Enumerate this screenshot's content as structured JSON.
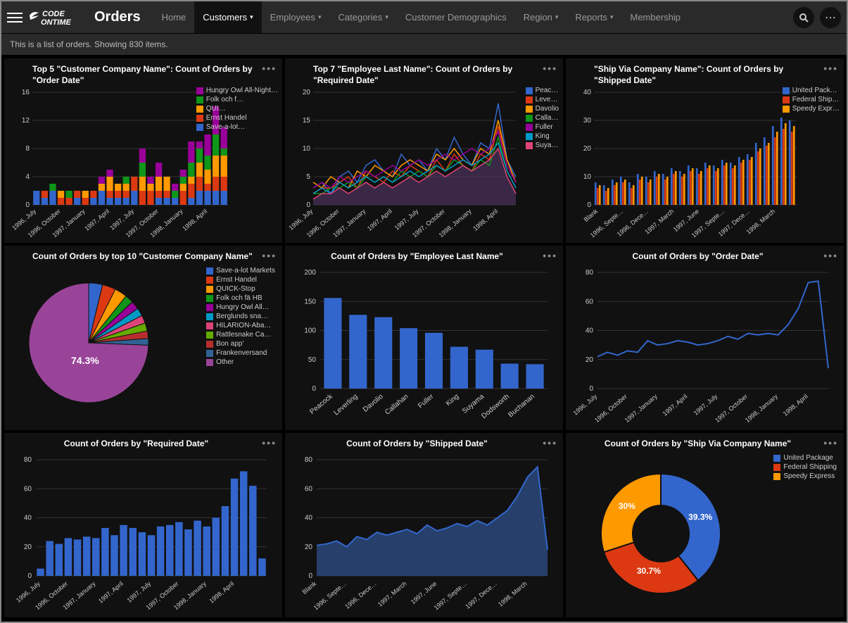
{
  "header": {
    "brand_top": "CODE",
    "brand_bottom": "ONTIME",
    "page_title": "Orders",
    "nav": [
      {
        "label": "Home",
        "active": false,
        "dropdown": false
      },
      {
        "label": "Customers",
        "active": true,
        "dropdown": true
      },
      {
        "label": "Employees",
        "active": false,
        "dropdown": true
      },
      {
        "label": "Categories",
        "active": false,
        "dropdown": true
      },
      {
        "label": "Customer Demographics",
        "active": false,
        "dropdown": false
      },
      {
        "label": "Region",
        "active": false,
        "dropdown": true
      },
      {
        "label": "Reports",
        "active": false,
        "dropdown": true
      },
      {
        "label": "Membership",
        "active": false,
        "dropdown": false
      }
    ]
  },
  "subheader": "This is a list of orders. Showing 830 items.",
  "palette": {
    "bg": "#111111",
    "text": "#cccccc",
    "axis": "#555555",
    "blue": "#3366cc",
    "red": "#dc3912",
    "orange": "#ff9900",
    "green": "#109618",
    "purple": "#990099",
    "cyan": "#0099c6",
    "pink": "#dd4477",
    "lime": "#66aa00",
    "darkred": "#b82e2e",
    "indigo": "#316395",
    "magenta": "#994499"
  },
  "charts": {
    "c1": {
      "type": "stacked-bar",
      "title": "Top 5 \"Customer Company Name\": Count of Orders by \"Order Date\"",
      "x_labels": [
        "1996, July",
        "1996, October",
        "1997, January",
        "1997, April",
        "1997, July",
        "1997, October",
        "1998, January",
        "1998, April"
      ],
      "ylim": [
        0,
        16
      ],
      "ytick_step": 4,
      "legend_labels": [
        "Hungry Owl All-Night…",
        "Folk och f…",
        "QUI…",
        "Ernst Handel",
        "Save-a-lot…"
      ],
      "legend_colors": [
        "#990099",
        "#109618",
        "#ff9900",
        "#dc3912",
        "#3366cc"
      ],
      "series": [
        {
          "color": "#3366cc",
          "values": [
            2,
            1,
            2,
            0,
            0,
            1,
            0,
            1,
            2,
            1,
            1,
            1,
            2,
            0,
            0,
            1,
            1,
            1,
            0,
            1,
            2,
            2,
            2,
            2
          ]
        },
        {
          "color": "#dc3912",
          "values": [
            0,
            1,
            0,
            1,
            1,
            1,
            1,
            1,
            0,
            1,
            1,
            1,
            2,
            2,
            2,
            1,
            1,
            0,
            2,
            2,
            2,
            1,
            2,
            2
          ]
        },
        {
          "color": "#ff9900",
          "values": [
            0,
            0,
            0,
            1,
            0,
            0,
            1,
            0,
            1,
            2,
            1,
            1,
            0,
            2,
            1,
            2,
            2,
            0,
            1,
            1,
            2,
            2,
            3,
            3
          ]
        },
        {
          "color": "#109618",
          "values": [
            0,
            0,
            1,
            0,
            1,
            0,
            0,
            0,
            0,
            0,
            0,
            1,
            0,
            2,
            0,
            0,
            0,
            1,
            1,
            2,
            2,
            2,
            3,
            1
          ]
        },
        {
          "color": "#990099",
          "values": [
            0,
            0,
            0,
            0,
            0,
            0,
            0,
            0,
            1,
            1,
            0,
            0,
            0,
            2,
            1,
            2,
            0,
            1,
            1,
            3,
            1,
            3,
            4,
            3
          ]
        }
      ]
    },
    "c2": {
      "type": "multi-line",
      "title": "Top 7 \"Employee Last Name\": Count of Orders by \"Required Date\"",
      "x_labels": [
        "1996, July",
        "1996, October",
        "1997, January",
        "1997, April",
        "1997, July",
        "1997, October",
        "1998, January",
        "1998, April"
      ],
      "ylim": [
        0,
        20
      ],
      "ytick_step": 5,
      "legend_labels": [
        "Peac…",
        "Leve…",
        "Davolio",
        "Calla…",
        "Fuller",
        "King",
        "Suya…"
      ],
      "legend_colors": [
        "#3366cc",
        "#dc3912",
        "#ff9900",
        "#109618",
        "#990099",
        "#0099c6",
        "#dd4477"
      ],
      "area_color": "#57396b",
      "series": [
        {
          "color": "#3366cc",
          "values": [
            3,
            4,
            2,
            5,
            6,
            4,
            7,
            8,
            6,
            5,
            9,
            7,
            8,
            6,
            10,
            8,
            12,
            9,
            7,
            11,
            10,
            18,
            8,
            5
          ]
        },
        {
          "color": "#dc3912",
          "values": [
            2,
            3,
            3,
            4,
            5,
            3,
            6,
            5,
            4,
            6,
            5,
            7,
            6,
            5,
            8,
            6,
            9,
            7,
            6,
            9,
            8,
            14,
            7,
            4
          ]
        },
        {
          "color": "#ff9900",
          "values": [
            4,
            3,
            5,
            4,
            3,
            6,
            5,
            7,
            6,
            5,
            7,
            8,
            7,
            6,
            9,
            8,
            10,
            8,
            7,
            10,
            9,
            15,
            8,
            4
          ]
        },
        {
          "color": "#109618",
          "values": [
            2,
            2,
            3,
            3,
            4,
            3,
            5,
            4,
            5,
            4,
            6,
            5,
            6,
            5,
            7,
            6,
            8,
            7,
            6,
            8,
            7,
            12,
            6,
            3
          ]
        },
        {
          "color": "#990099",
          "values": [
            3,
            4,
            3,
            5,
            4,
            5,
            6,
            5,
            6,
            7,
            6,
            7,
            8,
            7,
            8,
            9,
            8,
            9,
            10,
            9,
            10,
            13,
            7,
            4
          ]
        },
        {
          "color": "#0099c6",
          "values": [
            2,
            3,
            2,
            4,
            3,
            4,
            5,
            4,
            5,
            4,
            5,
            6,
            5,
            6,
            7,
            6,
            7,
            8,
            7,
            8,
            9,
            11,
            6,
            3
          ]
        },
        {
          "color": "#dd4477",
          "values": [
            1,
            2,
            2,
            3,
            2,
            3,
            4,
            3,
            4,
            3,
            4,
            5,
            4,
            5,
            6,
            5,
            6,
            7,
            6,
            7,
            8,
            10,
            5,
            2
          ]
        }
      ]
    },
    "c3": {
      "type": "grouped-bar",
      "title": "\"Ship Via Company Name\": Count of Orders by \"Shipped Date\"",
      "x_labels": [
        "Blank",
        "1996, Septe…",
        "1996, Dece…",
        "1997, March",
        "1997, June",
        "1997, Septe…",
        "1997, Dece…",
        "1998, March"
      ],
      "ylim": [
        0,
        40
      ],
      "ytick_step": 10,
      "legend_labels": [
        "United Pack…",
        "Federal Ship…",
        "Speedy Expr…"
      ],
      "legend_colors": [
        "#3366cc",
        "#dc3912",
        "#ff9900"
      ],
      "series": [
        {
          "color": "#3366cc",
          "values": [
            8,
            7,
            9,
            10,
            8,
            11,
            10,
            12,
            11,
            13,
            12,
            14,
            13,
            15,
            14,
            16,
            15,
            17,
            18,
            22,
            24,
            28,
            31,
            30
          ]
        },
        {
          "color": "#dc3912",
          "values": [
            6,
            5,
            7,
            8,
            6,
            9,
            8,
            10,
            9,
            11,
            10,
            12,
            11,
            13,
            12,
            14,
            13,
            15,
            16,
            19,
            21,
            24,
            27,
            26
          ]
        },
        {
          "color": "#ff9900",
          "values": [
            7,
            6,
            8,
            9,
            7,
            10,
            9,
            11,
            10,
            12,
            11,
            13,
            12,
            14,
            13,
            15,
            14,
            16,
            17,
            20,
            22,
            26,
            29,
            28
          ]
        }
      ]
    },
    "c4": {
      "type": "pie",
      "title": "Count of Orders by top 10 \"Customer Company Name\"",
      "center_label": "74.3%",
      "legend": [
        {
          "label": "Save-a-lot Markets",
          "color": "#3366cc",
          "value": 31
        },
        {
          "label": "Ernst Handel",
          "color": "#dc3912",
          "value": 30
        },
        {
          "label": "QUICK-Stop",
          "color": "#ff9900",
          "value": 28
        },
        {
          "label": "Folk och fä HB",
          "color": "#109618",
          "value": 19
        },
        {
          "label": "Hungry Owl All…",
          "color": "#990099",
          "value": 19
        },
        {
          "label": "Berglunds sna…",
          "color": "#0099c6",
          "value": 18
        },
        {
          "label": "HILARION-Aba…",
          "color": "#dd4477",
          "value": 18
        },
        {
          "label": "Rattlesnake Ca…",
          "color": "#66aa00",
          "value": 18
        },
        {
          "label": "Bon app'",
          "color": "#b82e2e",
          "value": 17
        },
        {
          "label": "Frankenversand",
          "color": "#316395",
          "value": 15
        },
        {
          "label": "Other",
          "color": "#994499",
          "value": 617
        }
      ]
    },
    "c5": {
      "type": "bar",
      "title": "Count of Orders by \"Employee Last Name\"",
      "x_labels": [
        "Peacock",
        "Leverling",
        "Davolio",
        "Callahan",
        "Fuller",
        "King",
        "Suyama",
        "Dodsworth",
        "Buchanan"
      ],
      "values": [
        156,
        127,
        123,
        104,
        96,
        72,
        67,
        43,
        42
      ],
      "ylim": [
        0,
        200
      ],
      "ytick_step": 50,
      "bar_color": "#3366cc"
    },
    "c6": {
      "type": "line",
      "title": "Count of Orders by \"Order Date\"",
      "x_labels": [
        "1996, July",
        "1996, October",
        "1997, January",
        "1997, April",
        "1997, July",
        "1997, October",
        "1998, January",
        "1998, April"
      ],
      "values": [
        22,
        25,
        23,
        26,
        25,
        33,
        30,
        31,
        33,
        32,
        30,
        31,
        33,
        36,
        34,
        38,
        37,
        38,
        37,
        44,
        55,
        73,
        74,
        14
      ],
      "ylim": [
        0,
        80
      ],
      "ytick_step": 20,
      "line_color": "#3366cc"
    },
    "c7": {
      "type": "bar",
      "title": "Count of Orders by \"Required Date\"",
      "x_labels": [
        "1996, July",
        "1996, October",
        "1997, January",
        "1997, April",
        "1997, July",
        "1997, October",
        "1998, January",
        "1998, April"
      ],
      "values": [
        5,
        24,
        22,
        26,
        25,
        27,
        26,
        33,
        28,
        35,
        33,
        30,
        28,
        34,
        35,
        37,
        32,
        38,
        34,
        40,
        48,
        67,
        72,
        62,
        12
      ],
      "ylim": [
        0,
        80
      ],
      "ytick_step": 20,
      "bar_color": "#3366cc"
    },
    "c8": {
      "type": "area",
      "title": "Count of Orders by \"Shipped Date\"",
      "x_labels": [
        "Blank",
        "1996, Septe…",
        "1996, Dece…",
        "1997, March",
        "1997, June",
        "1997, Septe…",
        "1997, Dece…",
        "1998, March"
      ],
      "values": [
        21,
        22,
        24,
        20,
        27,
        25,
        30,
        28,
        30,
        32,
        29,
        35,
        31,
        33,
        36,
        34,
        38,
        35,
        40,
        45,
        55,
        68,
        75,
        18
      ],
      "ylim": [
        0,
        80
      ],
      "ytick_step": 20,
      "line_color": "#3366cc",
      "fill_color": "#26406b"
    },
    "c9": {
      "type": "donut",
      "title": "Count of Orders by \"Ship Via Company Name\"",
      "legend": [
        {
          "label": "United Package",
          "color": "#3366cc",
          "value": 39.3
        },
        {
          "label": "Federal Shipping",
          "color": "#dc3912",
          "value": 30.7
        },
        {
          "label": "Speedy Express",
          "color": "#ff9900",
          "value": 30.0
        }
      ],
      "slice_labels": [
        "39.3%",
        "30.7%",
        "30%"
      ]
    }
  }
}
